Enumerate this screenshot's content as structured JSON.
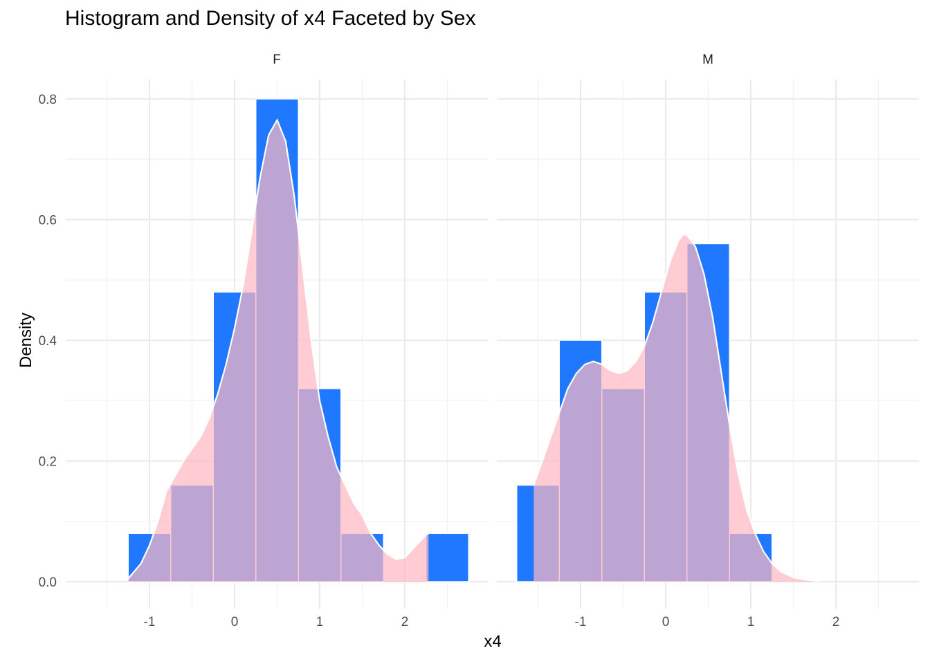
{
  "chart_data": {
    "type": "bar",
    "title": "Histogram and Density of x4 Faceted by Sex",
    "xlabel": "x4",
    "ylabel": "Density",
    "ylim": [
      0,
      0.82
    ],
    "xlim": [
      -1.75,
      2.75
    ],
    "x_ticks": [
      "-1",
      "0",
      "1",
      "2"
    ],
    "y_ticks": [
      "0.0",
      "0.2",
      "0.4",
      "0.6",
      "0.8"
    ],
    "grid": true,
    "colors": {
      "histogram": "#1F78FF",
      "density_fill": "#FFB6C1",
      "density_line": "#FFFFFF",
      "grid": "#EBEBEB"
    },
    "panels": [
      {
        "facet": "F",
        "bins": [
          {
            "x0": -1.25,
            "x1": -0.75,
            "density": 0.08
          },
          {
            "x0": -0.75,
            "x1": -0.25,
            "density": 0.16
          },
          {
            "x0": -0.25,
            "x1": 0.25,
            "density": 0.48
          },
          {
            "x0": 0.25,
            "x1": 0.75,
            "density": 0.8
          },
          {
            "x0": 0.75,
            "x1": 1.25,
            "density": 0.32
          },
          {
            "x0": 1.25,
            "x1": 1.75,
            "density": 0.08
          },
          {
            "x0": 1.75,
            "x1": 2.25,
            "density": 0.0
          },
          {
            "x0": 2.25,
            "x1": 2.75,
            "density": 0.08
          }
        ],
        "density": [
          [
            -1.25,
            0.005
          ],
          [
            -1.1,
            0.03
          ],
          [
            -1.0,
            0.06
          ],
          [
            -0.9,
            0.1
          ],
          [
            -0.8,
            0.15
          ],
          [
            -0.6,
            0.2
          ],
          [
            -0.4,
            0.24
          ],
          [
            -0.3,
            0.27
          ],
          [
            -0.2,
            0.31
          ],
          [
            -0.1,
            0.36
          ],
          [
            0.0,
            0.42
          ],
          [
            0.1,
            0.49
          ],
          [
            0.2,
            0.58
          ],
          [
            0.3,
            0.67
          ],
          [
            0.4,
            0.74
          ],
          [
            0.5,
            0.765
          ],
          [
            0.6,
            0.73
          ],
          [
            0.7,
            0.64
          ],
          [
            0.8,
            0.52
          ],
          [
            0.9,
            0.4
          ],
          [
            1.0,
            0.3
          ],
          [
            1.1,
            0.24
          ],
          [
            1.2,
            0.19
          ],
          [
            1.3,
            0.16
          ],
          [
            1.4,
            0.13
          ],
          [
            1.5,
            0.11
          ],
          [
            1.6,
            0.08
          ],
          [
            1.7,
            0.06
          ],
          [
            1.8,
            0.045
          ],
          [
            1.9,
            0.037
          ],
          [
            2.0,
            0.04
          ],
          [
            2.1,
            0.055
          ],
          [
            2.2,
            0.07
          ],
          [
            2.25,
            0.078
          ],
          [
            2.28,
            0.08
          ]
        ]
      },
      {
        "facet": "M",
        "bins": [
          {
            "x0": -1.75,
            "x1": -1.25,
            "density": 0.16
          },
          {
            "x0": -1.25,
            "x1": -0.75,
            "density": 0.4
          },
          {
            "x0": -0.75,
            "x1": -0.25,
            "density": 0.32
          },
          {
            "x0": -0.25,
            "x1": 0.25,
            "density": 0.48
          },
          {
            "x0": 0.25,
            "x1": 0.75,
            "density": 0.56
          },
          {
            "x0": 0.75,
            "x1": 1.25,
            "density": 0.08
          }
        ],
        "density": [
          [
            -1.55,
            0.16
          ],
          [
            -1.45,
            0.2
          ],
          [
            -1.35,
            0.24
          ],
          [
            -1.25,
            0.28
          ],
          [
            -1.15,
            0.32
          ],
          [
            -1.05,
            0.345
          ],
          [
            -0.95,
            0.36
          ],
          [
            -0.85,
            0.365
          ],
          [
            -0.75,
            0.36
          ],
          [
            -0.65,
            0.35
          ],
          [
            -0.55,
            0.345
          ],
          [
            -0.45,
            0.35
          ],
          [
            -0.35,
            0.365
          ],
          [
            -0.25,
            0.39
          ],
          [
            -0.15,
            0.43
          ],
          [
            -0.05,
            0.48
          ],
          [
            0.05,
            0.53
          ],
          [
            0.15,
            0.565
          ],
          [
            0.2,
            0.575
          ],
          [
            0.25,
            0.575
          ],
          [
            0.35,
            0.555
          ],
          [
            0.45,
            0.51
          ],
          [
            0.55,
            0.44
          ],
          [
            0.65,
            0.35
          ],
          [
            0.75,
            0.26
          ],
          [
            0.85,
            0.18
          ],
          [
            0.95,
            0.12
          ],
          [
            1.05,
            0.08
          ],
          [
            1.15,
            0.05
          ],
          [
            1.25,
            0.03
          ],
          [
            1.35,
            0.017
          ],
          [
            1.5,
            0.007
          ],
          [
            1.65,
            0.003
          ],
          [
            1.8,
            0.001
          ]
        ]
      }
    ]
  }
}
